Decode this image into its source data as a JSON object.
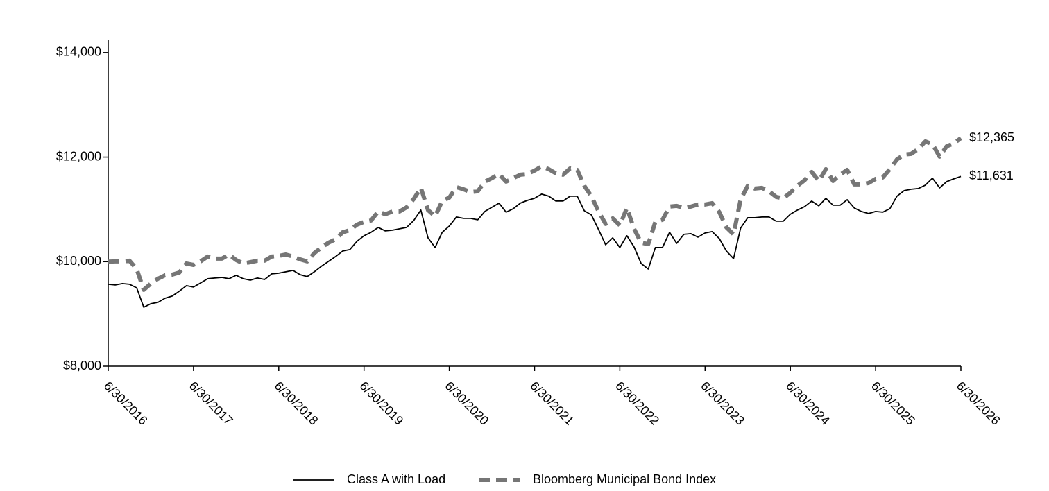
{
  "chart_data": {
    "type": "line",
    "categories": [
      "6/30/2016",
      null,
      null,
      null,
      null,
      null,
      null,
      null,
      null,
      null,
      null,
      null,
      "6/30/2017",
      null,
      null,
      null,
      null,
      null,
      null,
      null,
      null,
      null,
      null,
      null,
      "6/30/2018",
      null,
      null,
      null,
      null,
      null,
      null,
      null,
      null,
      null,
      null,
      null,
      "6/30/2019",
      null,
      null,
      null,
      null,
      null,
      null,
      null,
      null,
      null,
      null,
      null,
      "6/30/2020",
      null,
      null,
      null,
      null,
      null,
      null,
      null,
      null,
      null,
      null,
      null,
      "6/30/2021",
      null,
      null,
      null,
      null,
      null,
      null,
      null,
      null,
      null,
      null,
      null,
      "6/30/2022",
      null,
      null,
      null,
      null,
      null,
      null,
      null,
      null,
      null,
      null,
      null,
      "6/30/2023",
      null,
      null,
      null,
      null,
      null,
      null,
      null,
      null,
      null,
      null,
      null,
      "6/30/2024",
      null,
      null,
      null,
      null,
      null,
      null,
      null,
      null,
      null,
      null,
      null,
      "6/30/2025",
      null,
      null,
      null,
      null,
      null,
      null,
      null,
      null,
      null,
      null,
      null,
      "6/30/2026"
    ],
    "series": [
      {
        "name": "Class A with Load",
        "color": "#000000",
        "dashed": false,
        "values": [
          9567,
          9554,
          9580,
          9567,
          9500,
          9129,
          9195,
          9222,
          9301,
          9341,
          9434,
          9540,
          9514,
          9593,
          9673,
          9686,
          9699,
          9673,
          9739,
          9673,
          9646,
          9686,
          9659,
          9766,
          9779,
          9806,
          9832,
          9752,
          9713,
          9806,
          9912,
          10005,
          10098,
          10204,
          10231,
          10390,
          10496,
          10562,
          10655,
          10589,
          10602,
          10629,
          10655,
          10788,
          10987,
          10456,
          10270,
          10562,
          10682,
          10854,
          10828,
          10828,
          10801,
          10960,
          11040,
          11120,
          10947,
          11013,
          11120,
          11173,
          11213,
          11292,
          11252,
          11159,
          11159,
          11252,
          11252,
          10974,
          10894,
          10615,
          10323,
          10456,
          10270,
          10496,
          10283,
          9965,
          9859,
          10270,
          10270,
          10562,
          10350,
          10522,
          10536,
          10469,
          10549,
          10575,
          10442,
          10204,
          10058,
          10642,
          10841,
          10841,
          10854,
          10854,
          10775,
          10775,
          10907,
          10987,
          11053,
          11159,
          11066,
          11213,
          11080,
          11080,
          11186,
          11027,
          10960,
          10921,
          10960,
          10947,
          11013,
          11252,
          11359,
          11385,
          11398,
          11465,
          11598,
          11412,
          11531,
          11584,
          11631
        ],
        "value_labels": [
          null,
          null,
          null,
          null,
          null,
          null,
          null,
          null,
          null,
          null,
          null,
          null,
          null,
          null,
          null,
          null,
          null,
          null,
          null,
          null,
          null,
          null,
          null,
          null,
          null,
          null,
          null,
          null,
          null,
          null,
          null,
          null,
          null,
          null,
          null,
          null,
          null,
          null,
          null,
          null,
          null,
          null,
          null,
          null,
          null,
          null,
          null,
          null,
          null,
          null,
          null,
          null,
          null,
          null,
          null,
          null,
          null,
          null,
          null,
          null,
          null,
          null,
          null,
          null,
          null,
          null,
          null,
          null,
          null,
          null,
          null,
          null,
          null,
          null,
          null,
          null,
          null,
          null,
          null,
          null,
          null,
          null,
          null,
          null,
          null,
          null,
          null,
          null,
          null,
          null,
          null,
          null,
          null,
          null,
          null,
          null,
          null,
          null,
          null,
          null,
          null,
          null,
          null,
          null,
          null,
          null,
          null,
          null,
          null,
          null,
          null,
          null,
          null,
          null,
          null,
          null,
          null,
          null,
          null,
          null,
          "$11,631"
        ]
      },
      {
        "name": "Bloomberg Municipal Bond Index",
        "color": "#767676",
        "dashed": true,
        "values": [
          10000,
          10005,
          10005,
          10018,
          9859,
          9461,
          9580,
          9673,
          9739,
          9752,
          9792,
          9965,
          9938,
          10005,
          10098,
          10058,
          10058,
          10137,
          10031,
          9965,
          9991,
          10018,
          10018,
          10098,
          10111,
          10137,
          10098,
          10045,
          10005,
          10164,
          10270,
          10363,
          10429,
          10562,
          10602,
          10708,
          10761,
          10788,
          10960,
          10907,
          10960,
          10960,
          11040,
          11199,
          11412,
          10987,
          10867,
          11159,
          11226,
          11425,
          11385,
          11332,
          11345,
          11531,
          11598,
          11677,
          11531,
          11598,
          11664,
          11677,
          11744,
          11823,
          11770,
          11690,
          11664,
          11783,
          11757,
          11451,
          11252,
          10960,
          10721,
          10828,
          10695,
          11027,
          10629,
          10363,
          10336,
          10761,
          10801,
          11053,
          11066,
          11027,
          11053,
          11093,
          11093,
          11120,
          10947,
          10655,
          10522,
          11186,
          11451,
          11398,
          11412,
          11345,
          11239,
          11213,
          11319,
          11451,
          11558,
          11717,
          11544,
          11770,
          11544,
          11664,
          11757,
          11478,
          11478,
          11505,
          11584,
          11611,
          11770,
          11956,
          12049,
          12062,
          12155,
          12301,
          12248,
          12009,
          12208,
          12261,
          12365
        ],
        "value_labels": [
          null,
          null,
          null,
          null,
          null,
          null,
          null,
          null,
          null,
          null,
          null,
          null,
          null,
          null,
          null,
          null,
          null,
          null,
          null,
          null,
          null,
          null,
          null,
          null,
          null,
          null,
          null,
          null,
          null,
          null,
          null,
          null,
          null,
          null,
          null,
          null,
          null,
          null,
          null,
          null,
          null,
          null,
          null,
          null,
          null,
          null,
          null,
          null,
          null,
          null,
          null,
          null,
          null,
          null,
          null,
          null,
          null,
          null,
          null,
          null,
          null,
          null,
          null,
          null,
          null,
          null,
          null,
          null,
          null,
          null,
          null,
          null,
          null,
          null,
          null,
          null,
          null,
          null,
          null,
          null,
          null,
          null,
          null,
          null,
          null,
          null,
          null,
          null,
          null,
          null,
          null,
          null,
          null,
          null,
          null,
          null,
          null,
          null,
          null,
          null,
          null,
          null,
          null,
          null,
          null,
          null,
          null,
          null,
          null,
          null,
          null,
          null,
          null,
          null,
          null,
          null,
          null,
          null,
          null,
          null,
          "$12,365"
        ]
      }
    ],
    "ylim": [
      8000,
      14250
    ],
    "yticks": [
      {
        "value": 8000,
        "label": "$8,000"
      },
      {
        "value": 10000,
        "label": "$10,000"
      },
      {
        "value": 12000,
        "label": "$12,000"
      },
      {
        "value": 14000,
        "label": "$14,000"
      }
    ],
    "grid": false,
    "legend": "bottom"
  }
}
